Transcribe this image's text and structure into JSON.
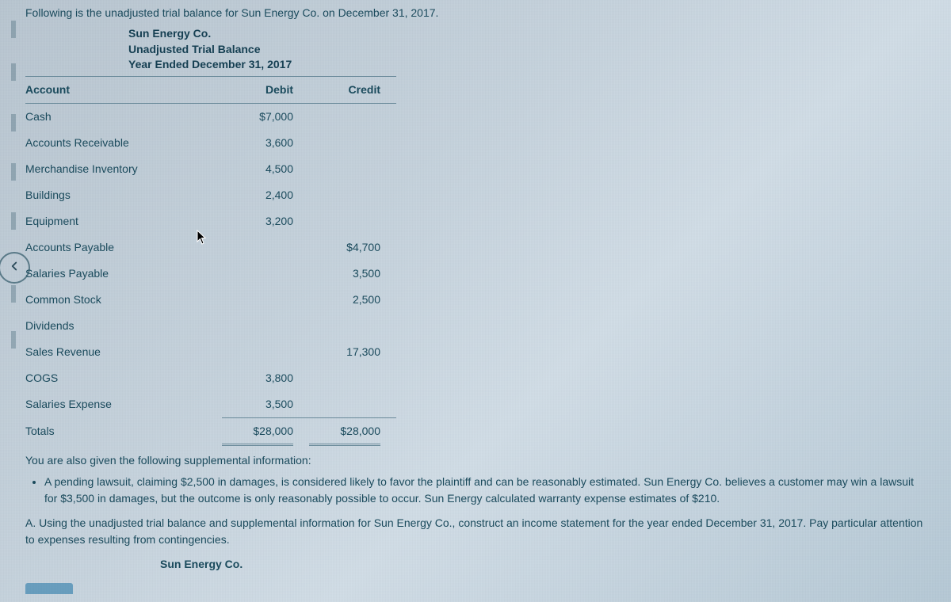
{
  "intro": "Following is the unadjusted trial balance for Sun Energy Co. on December 31, 2017.",
  "company": "Sun Energy Co.",
  "statement_title": "Unadjusted Trial Balance",
  "period": "Year Ended December 31, 2017",
  "table": {
    "columns": {
      "account": "Account",
      "debit": "Debit",
      "credit": "Credit"
    },
    "rows": [
      {
        "account": "Cash",
        "debit": "$7,000",
        "credit": ""
      },
      {
        "account": "Accounts Receivable",
        "debit": "3,600",
        "credit": ""
      },
      {
        "account": "Merchandise Inventory",
        "debit": "4,500",
        "credit": ""
      },
      {
        "account": "Buildings",
        "debit": "2,400",
        "credit": ""
      },
      {
        "account": "Equipment",
        "debit": "3,200",
        "credit": ""
      },
      {
        "account": "Accounts Payable",
        "debit": "",
        "credit": "$4,700"
      },
      {
        "account": "Salaries Payable",
        "debit": "",
        "credit": "3,500"
      },
      {
        "account": "Common Stock",
        "debit": "",
        "credit": "2,500"
      },
      {
        "account": "Dividends",
        "debit": "",
        "credit": ""
      },
      {
        "account": "Sales Revenue",
        "debit": "",
        "credit": "17,300"
      },
      {
        "account": "COGS",
        "debit": "3,800",
        "credit": ""
      },
      {
        "account": "Salaries Expense",
        "debit": "3,500",
        "credit": ""
      }
    ],
    "totals": {
      "label": "Totals",
      "debit": "$28,000",
      "credit": "$28,000"
    }
  },
  "supp_heading": "You are also given the following supplemental information:",
  "supp_bullet": "A pending lawsuit, claiming $2,500 in damages, is considered likely to favor the plaintiff and can be reasonably estimated. Sun Energy Co. believes a customer may win a lawsuit for $3,500 in damages, but the outcome is only reasonably possible to occur. Sun Energy calculated warranty expense estimates of $210.",
  "question_a": "A. Using the unadjusted trial balance and supplemental information for Sun Energy Co., construct an income statement for the year ended December 31, 2017. Pay particular attention to expenses resulting from contingencies.",
  "footer_company": "Sun Energy Co.",
  "left_tick_positions": [
    26,
    80,
    144,
    206,
    268,
    360,
    418
  ]
}
